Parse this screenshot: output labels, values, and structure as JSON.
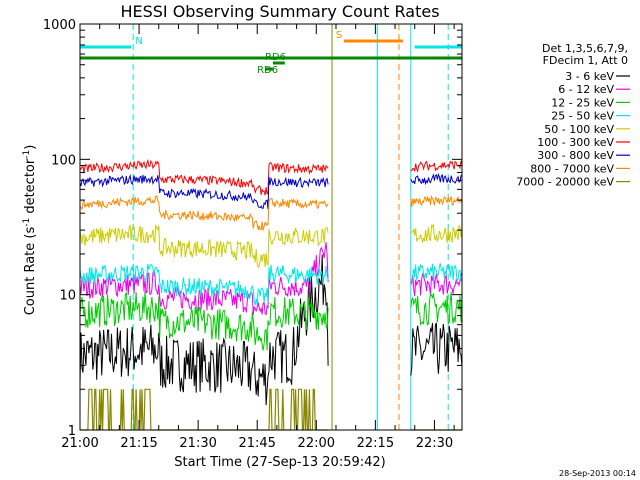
{
  "chart_data": {
    "type": "line",
    "title": "HESSI Observing Summary Count Rates",
    "xlabel": "Start Time (27-Sep-13 20:59:42)",
    "ylabel_main": "Count Rate (s",
    "ylabel_sup1": "-1",
    "ylabel_mid": " detector",
    "ylabel_sup2": "-1",
    "ylabel_end": ")",
    "y_scale": "log",
    "ylim": [
      1,
      1000
    ],
    "xlim_minutes": [
      0,
      97
    ],
    "y_ticks": [
      1,
      10,
      100,
      1000
    ],
    "y_tick_labels": [
      "1",
      "10",
      "100",
      "1000"
    ],
    "x_ticks_minutes": [
      0,
      15,
      30,
      45,
      60,
      75,
      90
    ],
    "x_tick_labels": [
      "21:00",
      "21:15",
      "21:30",
      "21:45",
      "22:00",
      "22:15",
      "22:30"
    ],
    "legend_header": [
      "Det 1,3,5,6,7,9,",
      "FDecim 1, Att 0"
    ],
    "legend_position": "right",
    "footer": "28-Sep-2013 00:14",
    "series": [
      {
        "name": "3 - 6 keV",
        "color": "#000000",
        "base": 3.6,
        "amp": 0.1,
        "noise": 0.12
      },
      {
        "name": "6 - 12 keV",
        "color": "#ee00ee",
        "base": 11.5,
        "amp": 0.05,
        "noise": 0.05
      },
      {
        "name": "12 - 25 keV",
        "color": "#00cc00",
        "base": 7.5,
        "amp": 0.08,
        "noise": 0.07
      },
      {
        "name": "25 - 50 keV",
        "color": "#00e5e5",
        "base": 14,
        "amp": 0.05,
        "noise": 0.04
      },
      {
        "name": "50 - 100 keV",
        "color": "#cccc00",
        "base": 27,
        "amp": 0.05,
        "noise": 0.04
      },
      {
        "name": "100 - 300 keV",
        "color": "#ff0000",
        "base": 86,
        "amp": 0.06,
        "noise": 0.02
      },
      {
        "name": "300 - 800 keV",
        "color": "#0000cc",
        "base": 68,
        "amp": 0.06,
        "noise": 0.02
      },
      {
        "name": "800 - 7000 keV",
        "color": "#ff8800",
        "base": 47,
        "amp": 0.06,
        "noise": 0.02
      },
      {
        "name": "7000 - 20000 keV",
        "color": "#888800",
        "base": 1.8,
        "amp": 0.0,
        "noise": 0.05
      }
    ],
    "data_gaps_minutes": [
      [
        63,
        84
      ]
    ],
    "flags": [
      {
        "label": "N",
        "color": "#00e5e5",
        "start": 0,
        "end": 13
      },
      {
        "label": "S",
        "color": "#ff8800",
        "start": 67,
        "end": 82
      },
      {
        "label": "",
        "color": "#00e5e5",
        "start": 85,
        "end": 97
      },
      {
        "label": "",
        "color": "#008800",
        "start": 0,
        "end": 97
      },
      {
        "label": "RD6",
        "color": "#008800",
        "start": 47,
        "end": 49
      },
      {
        "label": "RD6",
        "color": "#008800",
        "start": 49,
        "end": 52
      }
    ],
    "vertical_lines": [
      {
        "t": 0,
        "color": "#00e5e5",
        "style": "solid"
      },
      {
        "t": 13.5,
        "color": "#00e5e5",
        "style": "dashed"
      },
      {
        "t": 64,
        "color": "#888800",
        "style": "solid"
      },
      {
        "t": 75.5,
        "color": "#00e5e5",
        "style": "solid"
      },
      {
        "t": 81,
        "color": "#ff8800",
        "style": "dashed"
      },
      {
        "t": 84,
        "color": "#00e5e5",
        "style": "solid"
      },
      {
        "t": 93.5,
        "color": "#00e5e5",
        "style": "dashed"
      }
    ]
  }
}
